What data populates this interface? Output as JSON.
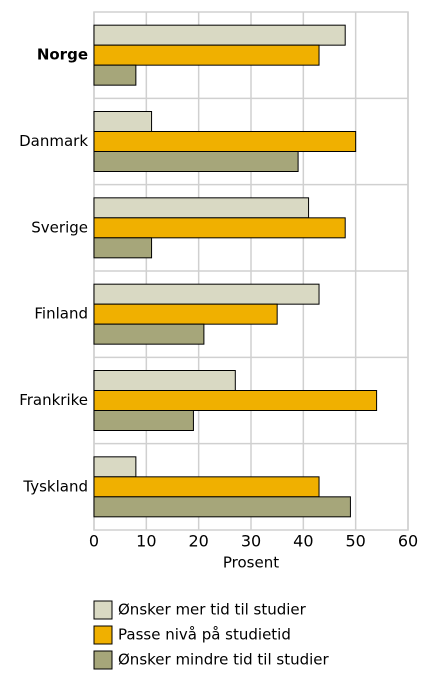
{
  "chart_data": {
    "type": "bar",
    "orientation": "horizontal",
    "categories": [
      "Norge",
      "Danmark",
      "Sverige",
      "Finland",
      "Frankrike",
      "Tyskland"
    ],
    "highlight_category": 0,
    "series": [
      {
        "name": "Ønsker mer tid til studier",
        "color": "#d9d9c3",
        "values": [
          48,
          11,
          41,
          43,
          27,
          8
        ]
      },
      {
        "name": "Passe nivå på studietid",
        "color": "#f0b000",
        "values": [
          43,
          50,
          48,
          35,
          54,
          43
        ]
      },
      {
        "name": "Ønsker mindre tid til studier",
        "color": "#a6a67a",
        "values": [
          8,
          39,
          11,
          21,
          19,
          49
        ]
      }
    ],
    "x_label": "Prosent",
    "xlim": [
      0,
      60
    ],
    "xticks": [
      0,
      10,
      20,
      30,
      40,
      50,
      60
    ],
    "grid": true,
    "legend": "bottom"
  }
}
